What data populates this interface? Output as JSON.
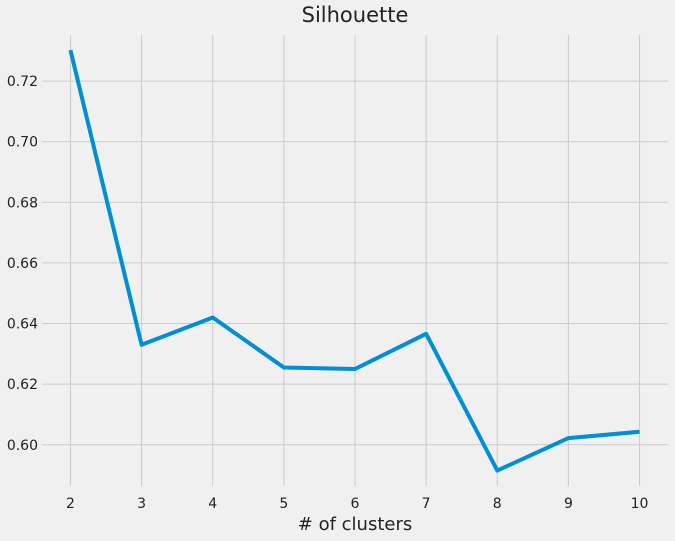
{
  "chart_data": {
    "type": "line",
    "title": "Silhouette",
    "xlabel": "# of clusters",
    "ylabel": "",
    "x": [
      2,
      3,
      4,
      5,
      6,
      7,
      8,
      9,
      10
    ],
    "series": [
      {
        "values": [
          0.7302,
          0.633,
          0.642,
          0.6255,
          0.625,
          0.6366,
          0.5915,
          0.6022,
          0.6043
        ]
      }
    ],
    "xlim": [
      1.6,
      10.4
    ],
    "ylim": [
      0.5864,
      0.7352
    ],
    "xticks": [
      "2",
      "3",
      "4",
      "5",
      "6",
      "7",
      "8",
      "9",
      "10"
    ],
    "yticks": [
      "0.60",
      "0.62",
      "0.64",
      "0.66",
      "0.68",
      "0.70",
      "0.72"
    ],
    "grid": true,
    "colors": {
      "line": "#008fd5",
      "grid": "#cbcbcb",
      "background": "#f0f0f0",
      "text": "#222222"
    }
  }
}
